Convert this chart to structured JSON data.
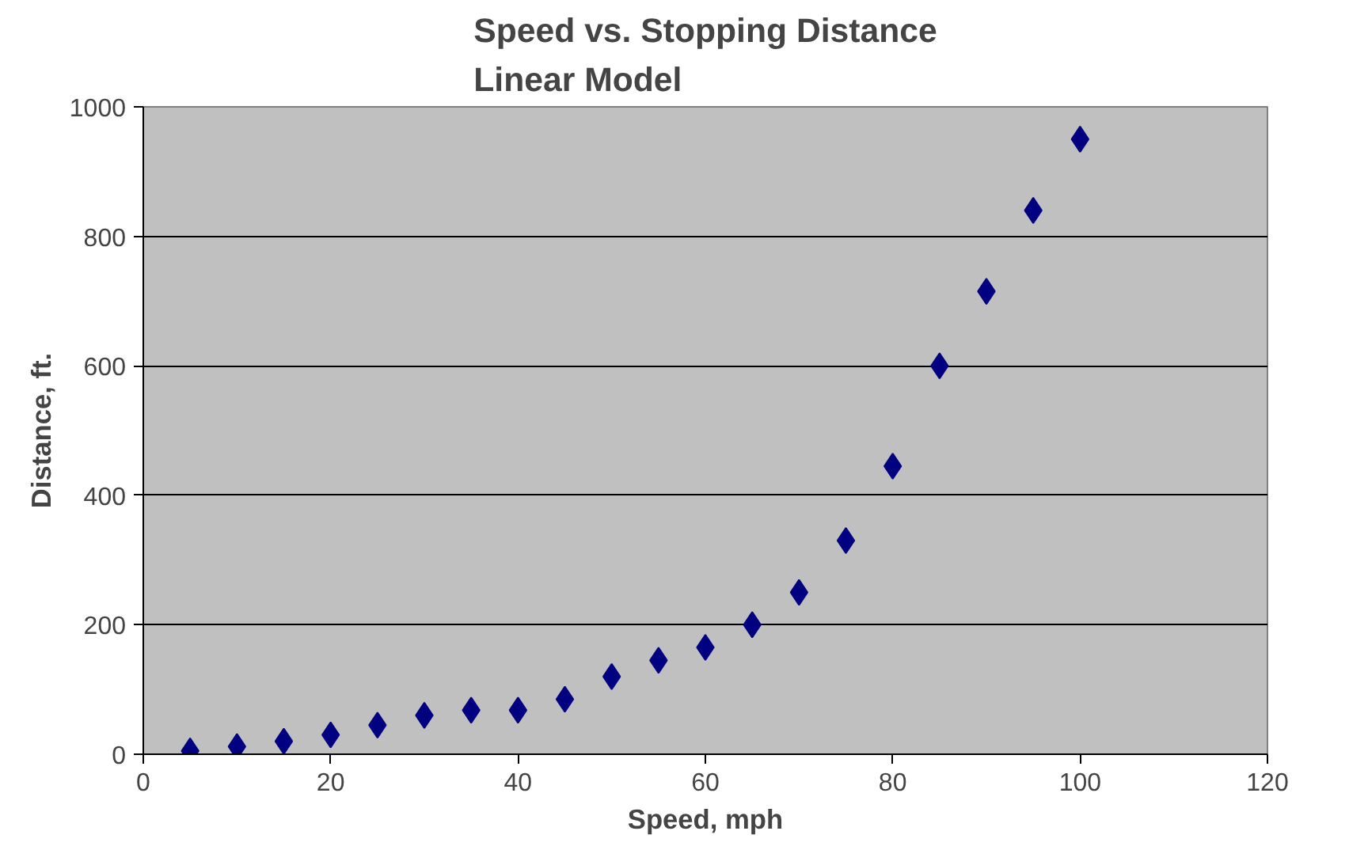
{
  "chart_data": {
    "type": "scatter",
    "title": "Speed vs. Stopping Distance\nLinear Model",
    "xlabel": "Speed, mph",
    "ylabel": "Distance, ft.",
    "x": [
      5,
      10,
      15,
      20,
      25,
      30,
      35,
      40,
      45,
      50,
      55,
      60,
      65,
      70,
      75,
      80,
      85,
      90,
      95,
      100
    ],
    "series": [
      {
        "color": "#000080",
        "values": [
          5,
          12,
          20,
          30,
          45,
          60,
          68,
          68,
          85,
          120,
          145,
          165,
          200,
          250,
          330,
          445,
          600,
          715,
          840,
          950
        ]
      }
    ],
    "xlim": [
      0,
      120
    ],
    "xticks": [
      0,
      20,
      40,
      60,
      80,
      100,
      120
    ],
    "ylim": [
      0,
      1000
    ],
    "yticks": [
      0,
      200,
      400,
      600,
      800,
      1000
    ],
    "grid": "y",
    "marker": "diamond"
  }
}
